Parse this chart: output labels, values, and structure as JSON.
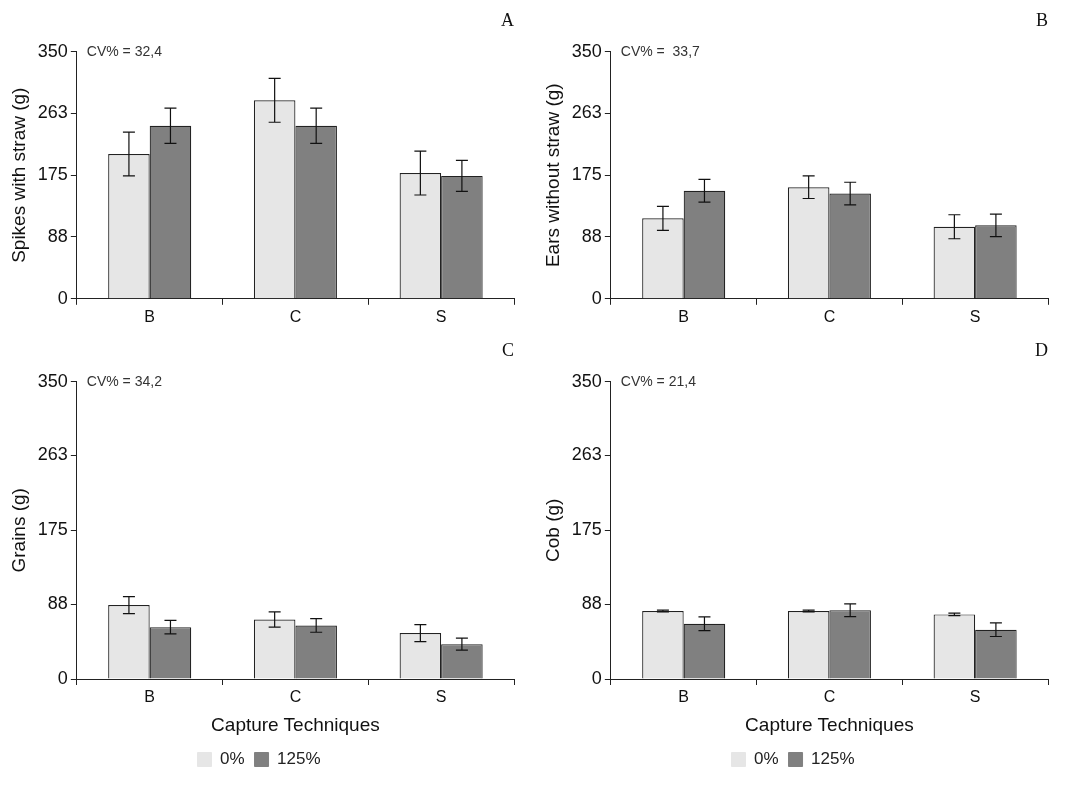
{
  "chart_data": [
    {
      "type": "bar",
      "title": "A",
      "ylabel": "Spikes with straw (g)",
      "annotations": [
        "CV% = 32,4"
      ],
      "categories": [
        "B",
        "C",
        "S"
      ],
      "ylim": [
        0,
        350
      ],
      "yticks": [
        0,
        88,
        175,
        263,
        350
      ],
      "series": [
        {
          "color": "#e6e6e6",
          "values": [
            205,
            281,
            178
          ],
          "errors": [
            31,
            31,
            31
          ]
        },
        {
          "color": "#808080",
          "values": [
            245,
            245,
            174
          ],
          "errors": [
            25,
            25,
            22
          ]
        }
      ]
    },
    {
      "type": "bar",
      "title": "B",
      "ylabel": "Ears without straw (g)",
      "annotations": [
        "CV% =  33,7"
      ],
      "categories": [
        "B",
        "C",
        "S"
      ],
      "ylim": [
        0,
        350
      ],
      "yticks": [
        0,
        88,
        175,
        263,
        350
      ],
      "series": [
        {
          "color": "#e6e6e6",
          "values": [
            114,
            158,
            102
          ],
          "errors": [
            17,
            16,
            17
          ]
        },
        {
          "color": "#808080",
          "values": [
            153,
            149,
            104
          ],
          "errors": [
            16,
            16,
            16
          ]
        }
      ]
    },
    {
      "type": "bar",
      "title": "C",
      "xlabel": "Capture Techniques",
      "ylabel": "Grains (g)",
      "annotations": [
        "CV% = 34,2"
      ],
      "categories": [
        "B",
        "C",
        "S"
      ],
      "ylim": [
        0,
        350
      ],
      "yticks": [
        0,
        88,
        175,
        263,
        350
      ],
      "legend": "bottom",
      "series": [
        {
          "name": "0%",
          "color": "#e6e6e6",
          "values": [
            87,
            70,
            54
          ],
          "errors": [
            10,
            9,
            10
          ]
        },
        {
          "name": "125%",
          "color": "#808080",
          "values": [
            61,
            63,
            41
          ],
          "errors": [
            8,
            8,
            7
          ]
        }
      ]
    },
    {
      "type": "bar",
      "title": "D",
      "xlabel": "Capture Techniques",
      "ylabel": "Cob (g)",
      "annotations": [
        "CV% = 21,4"
      ],
      "categories": [
        "B",
        "C",
        "S"
      ],
      "ylim": [
        0,
        350
      ],
      "yticks": [
        0,
        88,
        175,
        263,
        350
      ],
      "legend": "bottom",
      "series": [
        {
          "name": "0%",
          "color": "#e6e6e6",
          "values": [
            80,
            80,
            76
          ],
          "errors": [
            1,
            1,
            1.5
          ]
        },
        {
          "name": "125%",
          "color": "#808080",
          "values": [
            65,
            81,
            58
          ],
          "errors": [
            8,
            7.5,
            8
          ]
        }
      ]
    }
  ]
}
